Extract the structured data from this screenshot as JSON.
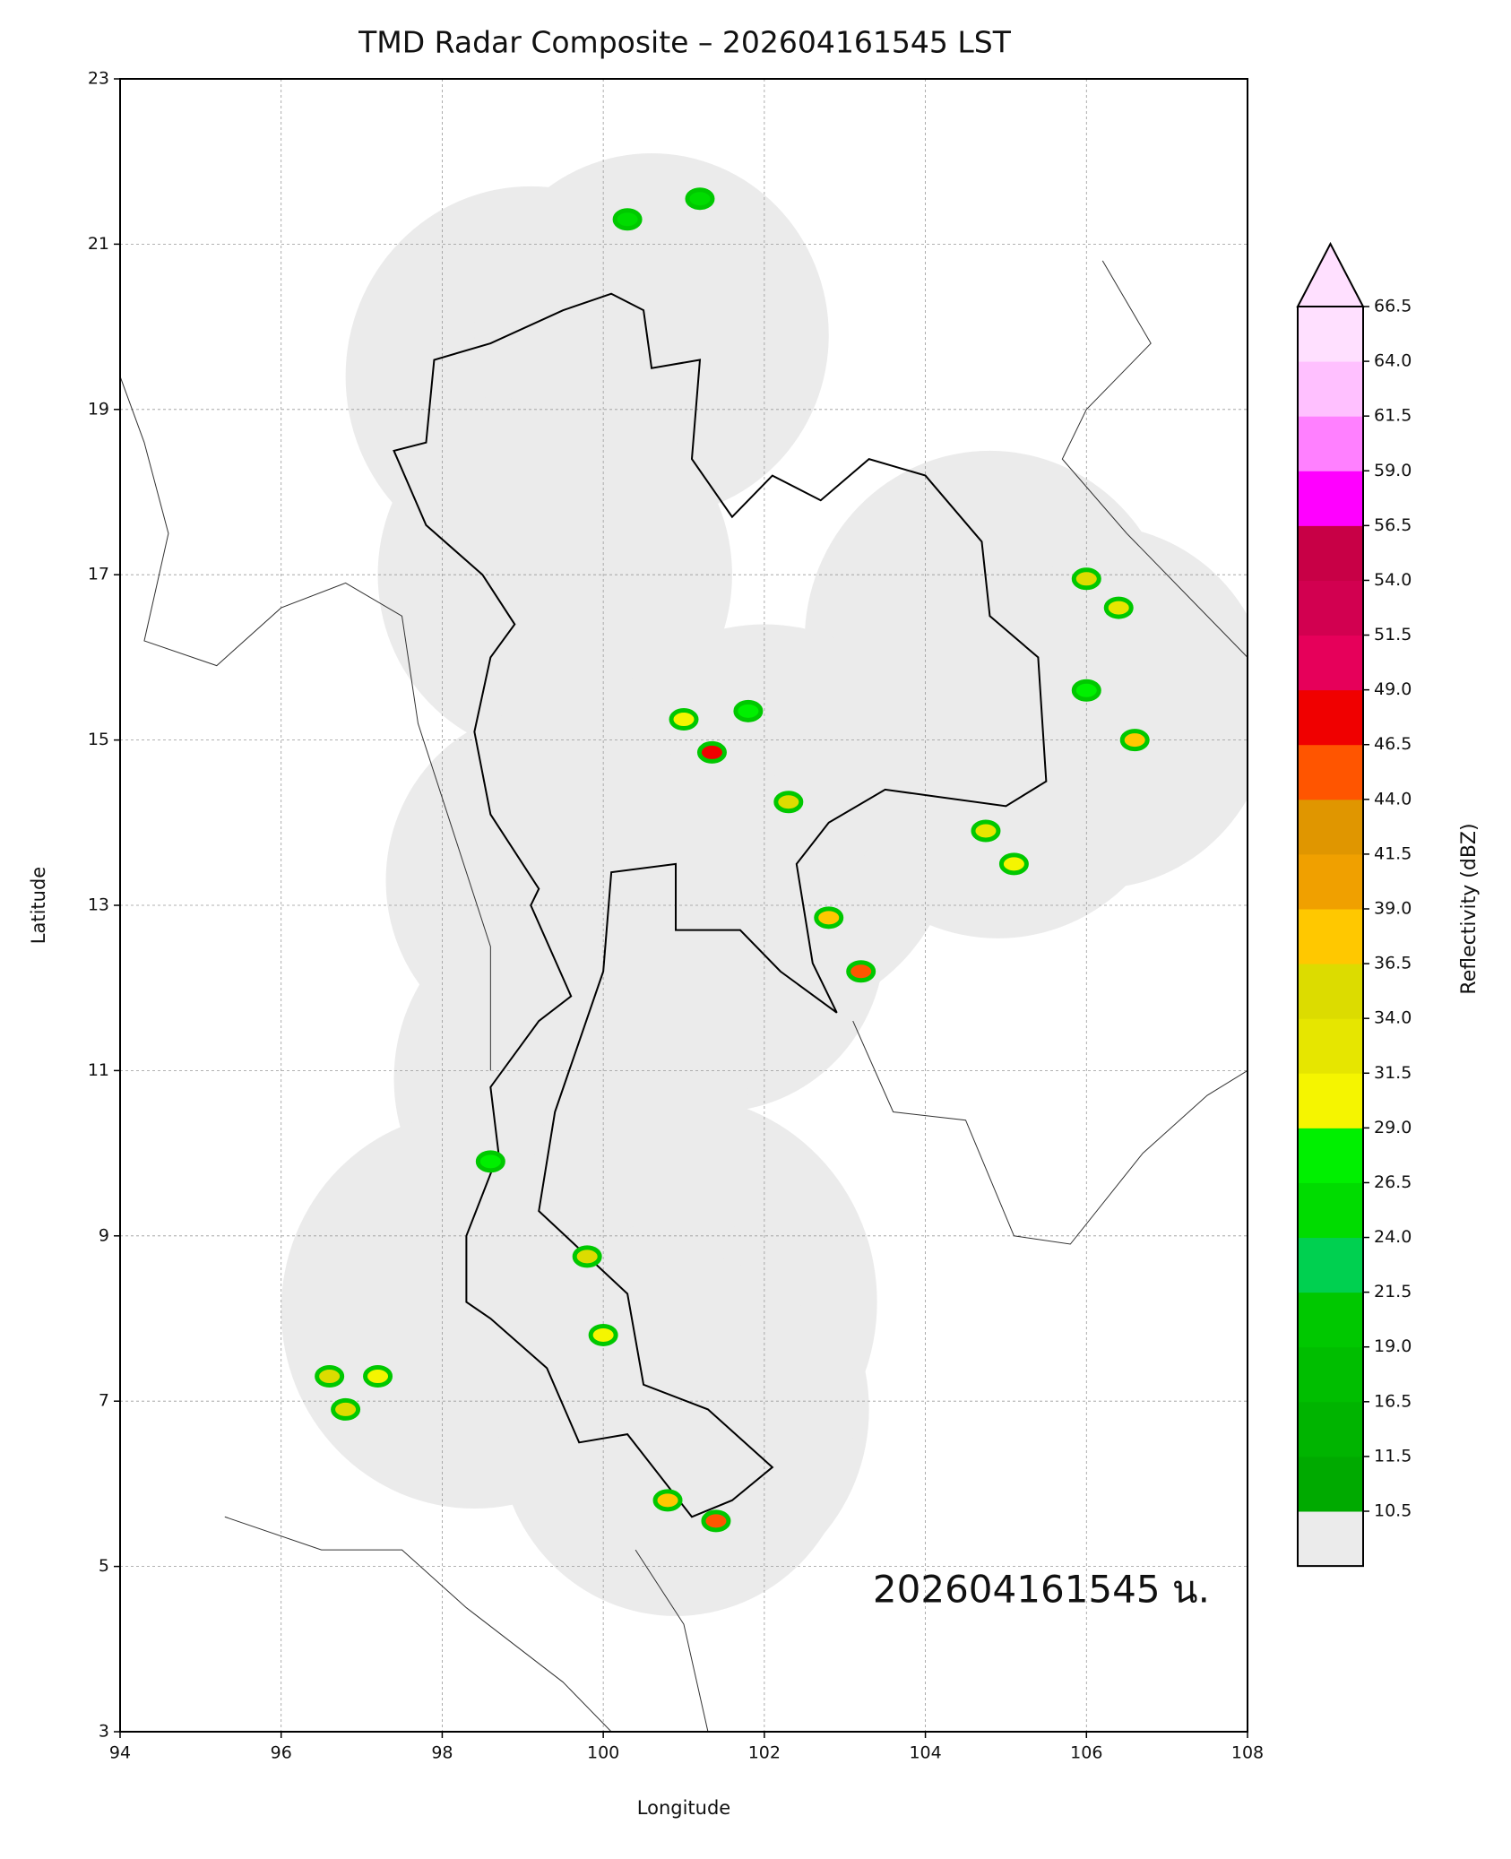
{
  "title": "TMD Radar Composite – 202604161545 LST",
  "xlabel": "Longitude",
  "ylabel": "Latitude",
  "annotation": "202604161545 น.",
  "xlim": [
    94,
    108
  ],
  "ylim": [
    3,
    23
  ],
  "xticks": [
    94,
    96,
    98,
    100,
    102,
    104,
    106,
    108
  ],
  "yticks": [
    3,
    5,
    7,
    9,
    11,
    13,
    15,
    17,
    19,
    21,
    23
  ],
  "grid": true,
  "colorbar": {
    "label": "Reflectivity (dBZ)",
    "levels": [
      10.5,
      11.5,
      16.5,
      {
        "value": 19,
        "label": "19.0"
      },
      21.5,
      {
        "value": 24,
        "label": "24.0"
      },
      26.5,
      {
        "value": 29,
        "label": "29.0"
      },
      31.5,
      {
        "value": 34,
        "label": "34.0"
      },
      36.5,
      {
        "value": 39,
        "label": "39.0"
      },
      41.5,
      {
        "value": 44,
        "label": "44.0"
      },
      46.5,
      {
        "value": 49,
        "label": "49.0"
      },
      51.5,
      {
        "value": 54,
        "label": "54.0"
      },
      56.5,
      {
        "value": 59,
        "label": "59.0"
      },
      61.5,
      {
        "value": 64,
        "label": "64.0"
      },
      66.5
    ],
    "colors": [
      "#00aa00",
      "#00b400",
      "#00be00",
      "#00c800",
      "#00d050",
      "#00dc00",
      "#00f000",
      "#f5f500",
      "#e6e600",
      "#dcdc00",
      "#ffc800",
      "#f0a000",
      "#e09600",
      "#ff5500",
      "#f00000",
      "#e6005a",
      "#d20050",
      "#c80046",
      "#ff00ff",
      "#ff80ff",
      "#ffc0ff",
      "#ffe0ff"
    ],
    "below_color": "#ebebeb",
    "extend_color": "#ffe0ff"
  },
  "echoes": [
    {
      "lon": 101.35,
      "lat": 14.85,
      "dbz": 48
    },
    {
      "lon": 101.0,
      "lat": 15.25,
      "dbz": 30
    },
    {
      "lon": 102.8,
      "lat": 12.85,
      "dbz": 38
    },
    {
      "lon": 103.2,
      "lat": 12.2,
      "dbz": 45
    },
    {
      "lon": 102.3,
      "lat": 14.25,
      "dbz": 36
    },
    {
      "lon": 104.75,
      "lat": 13.9,
      "dbz": 33
    },
    {
      "lon": 106.0,
      "lat": 16.95,
      "dbz": 36
    },
    {
      "lon": 106.4,
      "lat": 16.6,
      "dbz": 33
    },
    {
      "lon": 106.6,
      "lat": 15.0,
      "dbz": 38
    },
    {
      "lon": 106.0,
      "lat": 15.6,
      "dbz": 28
    },
    {
      "lon": 96.6,
      "lat": 7.3,
      "dbz": 34
    },
    {
      "lon": 97.2,
      "lat": 7.3,
      "dbz": 30
    },
    {
      "lon": 101.4,
      "lat": 5.55,
      "dbz": 46
    },
    {
      "lon": 100.8,
      "lat": 5.8,
      "dbz": 38
    },
    {
      "lon": 99.8,
      "lat": 8.75,
      "dbz": 34
    },
    {
      "lon": 100.0,
      "lat": 7.8,
      "dbz": 30
    },
    {
      "lon": 98.6,
      "lat": 9.9,
      "dbz": 28
    },
    {
      "lon": 101.8,
      "lat": 15.35,
      "dbz": 27
    },
    {
      "lon": 101.2,
      "lat": 21.55,
      "dbz": 26
    },
    {
      "lon": 100.3,
      "lat": 21.3,
      "dbz": 24
    },
    {
      "lon": 96.8,
      "lat": 6.9,
      "dbz": 36
    },
    {
      "lon": 105.1,
      "lat": 13.5,
      "dbz": 30
    }
  ]
}
